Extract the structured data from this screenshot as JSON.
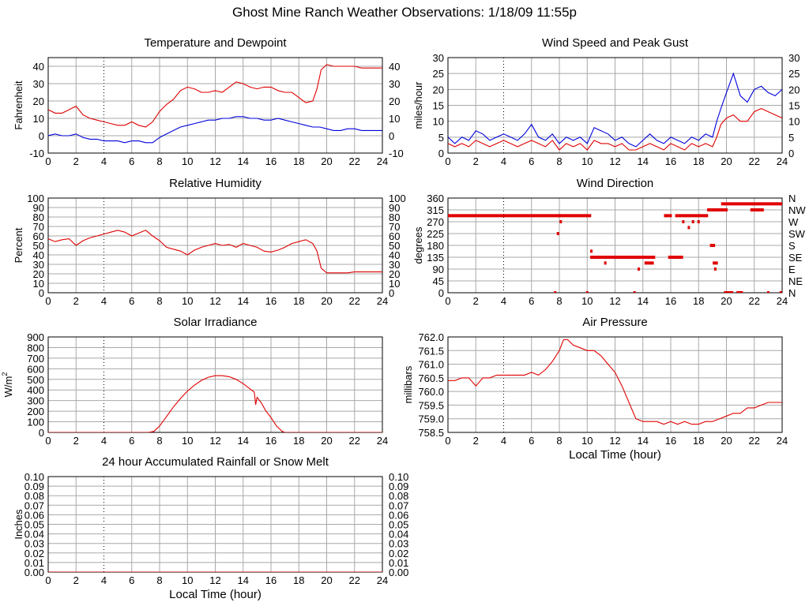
{
  "page": {
    "title": "Ghost Mine Ranch Weather Observations: 1/18/09 11:55p"
  },
  "colors": {
    "series_red": "#e00000",
    "series_blue": "#0000dd",
    "grid": "#a8a8a8",
    "frame": "#000000"
  },
  "chart_data": [
    {
      "id": "temperature",
      "type": "line",
      "title": "Temperature and Dewpoint",
      "ylabel": "Fahrenheit",
      "xlabel": "",
      "xlim": [
        0,
        24
      ],
      "ylim": [
        -10,
        45
      ],
      "yticks": [
        -10,
        0,
        10,
        20,
        30,
        40
      ],
      "xticks": [
        0,
        2,
        4,
        6,
        8,
        10,
        12,
        14,
        16,
        18,
        20,
        22,
        24
      ],
      "right_axis": true,
      "series": [
        {
          "color": "red",
          "x": [
            0,
            0.5,
            1,
            1.5,
            2,
            2.5,
            3,
            3.5,
            4,
            4.5,
            5,
            5.5,
            6,
            6.5,
            7,
            7.5,
            8,
            8.5,
            9,
            9.5,
            10,
            10.5,
            11,
            11.5,
            12,
            12.5,
            13,
            13.5,
            14,
            14.5,
            15,
            15.5,
            16,
            16.5,
            17,
            17.5,
            18,
            18.5,
            19,
            19.3,
            19.6,
            20,
            20.5,
            21,
            21.5,
            22,
            22.5,
            23,
            23.5,
            24
          ],
          "y": [
            15,
            13,
            13,
            15,
            17,
            12,
            10,
            9,
            8,
            7,
            6,
            6,
            8,
            6,
            5,
            8,
            14,
            18,
            21,
            26,
            28,
            27,
            25,
            25,
            26,
            25,
            28,
            31,
            30,
            28,
            27,
            28,
            28,
            26,
            25,
            25,
            22,
            19,
            20,
            27,
            38,
            41,
            40,
            40,
            40,
            40,
            39,
            39,
            39,
            39
          ]
        },
        {
          "color": "blue",
          "x": [
            0,
            0.5,
            1,
            1.5,
            2,
            2.5,
            3,
            3.5,
            4,
            4.5,
            5,
            5.5,
            6,
            6.5,
            7,
            7.5,
            8,
            8.5,
            9,
            9.5,
            10,
            10.5,
            11,
            11.5,
            12,
            12.5,
            13,
            13.5,
            14,
            14.5,
            15,
            15.5,
            16,
            16.5,
            17,
            17.5,
            18,
            18.5,
            19,
            19.5,
            20,
            20.5,
            21,
            21.5,
            22,
            22.5,
            23,
            23.5,
            24
          ],
          "y": [
            0,
            1,
            0,
            0,
            1,
            -1,
            -2,
            -2,
            -3,
            -3,
            -3,
            -4,
            -3,
            -3,
            -4,
            -4,
            -1,
            1,
            3,
            5,
            6,
            7,
            8,
            9,
            9,
            10,
            10,
            11,
            11,
            10,
            10,
            9,
            9,
            10,
            9,
            8,
            7,
            6,
            5,
            5,
            4,
            3,
            3,
            4,
            4,
            3,
            3,
            3,
            3
          ]
        }
      ]
    },
    {
      "id": "wind_speed",
      "type": "line",
      "title": "Wind Speed and Peak Gust",
      "ylabel": "miles/hour",
      "xlabel": "",
      "xlim": [
        0,
        24
      ],
      "ylim": [
        0,
        30
      ],
      "yticks": [
        0,
        5,
        10,
        15,
        20,
        25,
        30
      ],
      "xticks": [
        0,
        2,
        4,
        6,
        8,
        10,
        12,
        14,
        16,
        18,
        20,
        22,
        24
      ],
      "right_axis": true,
      "series": [
        {
          "color": "blue",
          "x": [
            0,
            0.5,
            1,
            1.5,
            2,
            2.5,
            3,
            3.5,
            4,
            4.5,
            5,
            5.5,
            6,
            6.5,
            7,
            7.5,
            8,
            8.5,
            9,
            9.5,
            10,
            10.5,
            11,
            11.5,
            12,
            12.5,
            13,
            13.5,
            14,
            14.5,
            15,
            15.5,
            16,
            16.5,
            17,
            17.5,
            18,
            18.5,
            19,
            19.3,
            19.6,
            20,
            20.5,
            21,
            21.5,
            22,
            22.5,
            23,
            23.5,
            24
          ],
          "y": [
            5,
            3,
            5,
            4,
            7,
            6,
            4,
            5,
            6,
            5,
            4,
            6,
            9,
            5,
            4,
            6,
            3,
            5,
            4,
            5,
            3,
            8,
            7,
            6,
            4,
            5,
            3,
            2,
            4,
            6,
            4,
            3,
            5,
            4,
            3,
            5,
            4,
            6,
            5,
            10,
            14,
            19,
            25,
            18,
            16,
            20,
            21,
            19,
            18,
            20
          ]
        },
        {
          "color": "red",
          "x": [
            0,
            0.5,
            1,
            1.5,
            2,
            2.5,
            3,
            3.5,
            4,
            4.5,
            5,
            5.5,
            6,
            6.5,
            7,
            7.5,
            8,
            8.5,
            9,
            9.5,
            10,
            10.5,
            11,
            11.5,
            12,
            12.5,
            13,
            13.5,
            14,
            14.5,
            15,
            15.5,
            16,
            16.5,
            17,
            17.5,
            18,
            18.5,
            19,
            19.3,
            19.6,
            20,
            20.5,
            21,
            21.5,
            22,
            22.5,
            23,
            23.5,
            24
          ],
          "y": [
            3,
            2,
            3,
            2,
            4,
            3,
            2,
            3,
            4,
            3,
            2,
            3,
            4,
            3,
            2,
            4,
            1,
            3,
            2,
            3,
            1,
            4,
            3,
            3,
            2,
            3,
            1,
            1,
            2,
            3,
            2,
            1,
            3,
            2,
            1,
            3,
            2,
            3,
            2,
            5,
            9,
            11,
            12,
            10,
            10,
            13,
            14,
            13,
            12,
            11
          ]
        }
      ]
    },
    {
      "id": "humidity",
      "type": "line",
      "title": "Relative Humidity",
      "ylabel": "Percent",
      "xlabel": "",
      "xlim": [
        0,
        24
      ],
      "ylim": [
        0,
        100
      ],
      "yticks": [
        0,
        10,
        20,
        30,
        40,
        50,
        60,
        70,
        80,
        90,
        100
      ],
      "xticks": [
        0,
        2,
        4,
        6,
        8,
        10,
        12,
        14,
        16,
        18,
        20,
        22,
        24
      ],
      "right_axis": true,
      "series": [
        {
          "color": "red",
          "x": [
            0,
            0.5,
            1,
            1.5,
            2,
            2.5,
            3,
            3.5,
            4,
            4.5,
            5,
            5.5,
            6,
            6.5,
            7,
            7.5,
            8,
            8.5,
            9,
            9.5,
            10,
            10.5,
            11,
            11.5,
            12,
            12.5,
            13,
            13.5,
            14,
            14.5,
            15,
            15.5,
            16,
            16.5,
            17,
            17.5,
            18,
            18.5,
            19,
            19.3,
            19.6,
            20,
            20.5,
            21,
            21.5,
            22,
            22.5,
            23,
            23.5,
            24
          ],
          "y": [
            57,
            54,
            56,
            57,
            50,
            55,
            58,
            60,
            62,
            64,
            66,
            64,
            60,
            63,
            66,
            60,
            55,
            48,
            46,
            44,
            40,
            45,
            48,
            50,
            52,
            50,
            51,
            48,
            52,
            50,
            48,
            44,
            43,
            45,
            48,
            52,
            54,
            56,
            52,
            44,
            26,
            21,
            21,
            21,
            21,
            22,
            22,
            22,
            22,
            22
          ]
        }
      ]
    },
    {
      "id": "wind_direction",
      "type": "scatter",
      "title": "Wind Direction",
      "ylabel": "degrees",
      "xlabel": "",
      "xlim": [
        0,
        24
      ],
      "ylim": [
        0,
        360
      ],
      "yticks": [
        0,
        45,
        90,
        135,
        180,
        225,
        270,
        315,
        360
      ],
      "xticks": [
        0,
        2,
        4,
        6,
        8,
        10,
        12,
        14,
        16,
        18,
        20,
        22,
        24
      ],
      "right_labels": [
        "N",
        "NE",
        "E",
        "SE",
        "S",
        "SW",
        "W",
        "NW",
        "N"
      ],
      "points": [
        {
          "x0": 0,
          "x1": 8.0,
          "y": 293
        },
        {
          "x0": 8.0,
          "x1": 10.2,
          "y": 293
        },
        {
          "x0": 10.3,
          "x1": 14.8,
          "y": 135
        },
        {
          "x0": 15.9,
          "x1": 16.8,
          "y": 135
        },
        {
          "x0": 15.6,
          "x1": 16.0,
          "y": 293
        },
        {
          "x0": 16.4,
          "x1": 18.6,
          "y": 293
        },
        {
          "x0": 19.7,
          "x1": 24,
          "y": 338
        },
        {
          "x0": 18.7,
          "x1": 20.0,
          "y": 315
        },
        {
          "x0": 21.8,
          "x1": 22.6,
          "y": 315
        },
        {
          "x0": 14.2,
          "x1": 14.7,
          "y": 113
        },
        {
          "x0": 19.9,
          "x1": 20.4,
          "y": 0
        },
        {
          "x0": 20.8,
          "x1": 21.1,
          "y": 0
        },
        {
          "x0": 7.9,
          "x1": 7.9,
          "y": 225
        },
        {
          "x0": 8.1,
          "x1": 8.1,
          "y": 270
        },
        {
          "x0": 10.3,
          "x1": 10.3,
          "y": 158
        },
        {
          "x0": 11.3,
          "x1": 11.3,
          "y": 113
        },
        {
          "x0": 13.7,
          "x1": 13.7,
          "y": 90
        },
        {
          "x0": 16.9,
          "x1": 16.9,
          "y": 270
        },
        {
          "x0": 17.3,
          "x1": 17.3,
          "y": 248
        },
        {
          "x0": 17.6,
          "x1": 17.6,
          "y": 270
        },
        {
          "x0": 18.0,
          "x1": 18.0,
          "y": 270
        },
        {
          "x0": 18.9,
          "x1": 19.1,
          "y": 180
        },
        {
          "x0": 19.1,
          "x1": 19.3,
          "y": 113
        },
        {
          "x0": 19.2,
          "x1": 19.2,
          "y": 90
        },
        {
          "x0": 7.7,
          "x1": 7.7,
          "y": 0
        },
        {
          "x0": 10.0,
          "x1": 10.0,
          "y": 0
        },
        {
          "x0": 13.4,
          "x1": 13.4,
          "y": 0
        },
        {
          "x0": 23.0,
          "x1": 23.0,
          "y": 0
        },
        {
          "x0": 23.9,
          "x1": 23.9,
          "y": 0
        }
      ]
    },
    {
      "id": "solar",
      "type": "line",
      "title": "Solar Irradiance",
      "ylabel": "W/m",
      "ylabel_sup": "2",
      "xlabel": "",
      "xlim": [
        0,
        24
      ],
      "ylim": [
        0,
        900
      ],
      "yticks": [
        0,
        100,
        200,
        300,
        400,
        500,
        600,
        700,
        800,
        900
      ],
      "xticks": [
        0,
        2,
        4,
        6,
        8,
        10,
        12,
        14,
        16,
        18,
        20,
        22,
        24
      ],
      "right_axis": false,
      "series": [
        {
          "color": "red",
          "x": [
            0,
            7.2,
            7.6,
            8,
            8.5,
            9,
            9.5,
            10,
            10.5,
            11,
            11.5,
            12,
            12.5,
            13,
            13.5,
            14,
            14.5,
            14.8,
            14.9,
            15,
            15.3,
            15.6,
            16,
            16.4,
            16.8,
            17,
            24
          ],
          "y": [
            0,
            0,
            10,
            60,
            150,
            240,
            320,
            390,
            445,
            490,
            520,
            535,
            535,
            525,
            500,
            460,
            410,
            380,
            260,
            330,
            280,
            210,
            140,
            60,
            10,
            0,
            0
          ]
        }
      ]
    },
    {
      "id": "pressure",
      "type": "line",
      "title": "Air Pressure",
      "ylabel": "millibars",
      "xlabel": "Local Time (hour)",
      "xlim": [
        0,
        24
      ],
      "ylim": [
        758.5,
        762.0
      ],
      "yticks": [
        758.5,
        759.0,
        759.5,
        760.0,
        760.5,
        761.0,
        761.5,
        762.0
      ],
      "xticks": [
        0,
        2,
        4,
        6,
        8,
        10,
        12,
        14,
        16,
        18,
        20,
        22,
        24
      ],
      "right_axis": false,
      "series": [
        {
          "color": "red",
          "x": [
            0,
            0.5,
            1,
            1.5,
            2,
            2.5,
            3,
            3.5,
            4,
            4.5,
            5,
            5.5,
            6,
            6.5,
            7,
            7.5,
            8,
            8.3,
            8.6,
            9,
            9.5,
            10,
            10.5,
            11,
            11.5,
            12,
            12.5,
            13,
            13.5,
            14,
            14.5,
            15,
            15.5,
            16,
            16.5,
            17,
            17.5,
            18,
            18.5,
            19,
            19.5,
            20,
            20.5,
            21,
            21.5,
            22,
            22.5,
            23,
            23.5,
            24
          ],
          "y": [
            760.4,
            760.4,
            760.5,
            760.5,
            760.2,
            760.5,
            760.5,
            760.6,
            760.6,
            760.6,
            760.6,
            760.6,
            760.7,
            760.6,
            760.8,
            761.1,
            761.5,
            761.9,
            761.9,
            761.7,
            761.6,
            761.5,
            761.5,
            761.3,
            761.0,
            760.7,
            760.2,
            759.6,
            759.0,
            758.9,
            758.9,
            758.9,
            758.8,
            758.9,
            758.8,
            758.9,
            758.8,
            758.8,
            758.9,
            758.9,
            759.0,
            759.1,
            759.2,
            759.2,
            759.4,
            759.4,
            759.5,
            759.6,
            759.6,
            759.6
          ]
        }
      ]
    },
    {
      "id": "rainfall",
      "type": "line",
      "title": "24 hour Accumulated Rainfall or Snow Melt",
      "ylabel": "Inches",
      "xlabel": "Local Time (hour)",
      "xlim": [
        0,
        24
      ],
      "ylim": [
        0,
        0.1
      ],
      "yticks": [
        0.0,
        0.01,
        0.02,
        0.03,
        0.04,
        0.05,
        0.06,
        0.07,
        0.08,
        0.09,
        0.1
      ],
      "yticklabels": [
        "0.00",
        "0.01",
        "0.02",
        "0.03",
        "0.04",
        "0.05",
        "0.06",
        "0.07",
        "0.08",
        "0.09",
        "0.10"
      ],
      "xticks": [
        0,
        2,
        4,
        6,
        8,
        10,
        12,
        14,
        16,
        18,
        20,
        22,
        24
      ],
      "right_axis": true,
      "series": [
        {
          "color": "red",
          "x": [
            0,
            24
          ],
          "y": [
            0,
            0
          ]
        }
      ]
    }
  ]
}
